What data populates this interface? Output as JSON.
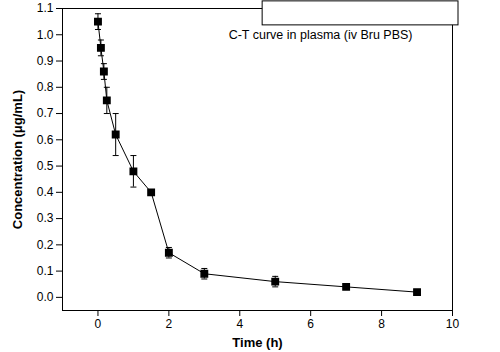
{
  "chart_data": {
    "type": "line",
    "x_label": "Time (h)",
    "y_label": "Concentration (μg/mL)",
    "x": [
      0,
      0.083,
      0.167,
      0.25,
      0.5,
      1,
      1.5,
      2,
      3,
      5,
      7,
      9
    ],
    "series": [
      {
        "name": "C-T curve in plasma (iv Bru PBS)",
        "color": "#000000",
        "marker": "square",
        "line_style": "solid",
        "values": [
          1.05,
          0.95,
          0.86,
          0.75,
          0.62,
          0.48,
          0.4,
          0.17,
          0.09,
          0.06,
          0.04,
          0.02
        ],
        "errors": [
          0.03,
          0.03,
          0.03,
          0.05,
          0.08,
          0.06,
          0.01,
          0.02,
          0.02,
          0.02,
          0.01,
          0.01
        ]
      }
    ],
    "legend": "top-right",
    "xlim": [
      -1,
      10
    ],
    "xticks": [
      0,
      2,
      4,
      6,
      8,
      10
    ],
    "ylim": [
      -0.05,
      1.1
    ],
    "yticks": [
      {
        "value": 0,
        "label": "0.0"
      },
      {
        "value": 0.1,
        "label": "0.1"
      },
      {
        "value": 0.2,
        "label": "0.2"
      },
      {
        "value": 0.3,
        "label": "0.3"
      },
      {
        "value": 0.4,
        "label": "0.4"
      },
      {
        "value": 0.5,
        "label": "0.5"
      },
      {
        "value": 0.6,
        "label": "0.6"
      },
      {
        "value": 0.7,
        "label": "0.7"
      },
      {
        "value": 0.8,
        "label": "0.8"
      },
      {
        "value": 0.9,
        "label": "0.9"
      },
      {
        "value": 1.0,
        "label": "1.0"
      },
      {
        "value": 1.1,
        "label": "1.1"
      }
    ],
    "grid": false
  }
}
